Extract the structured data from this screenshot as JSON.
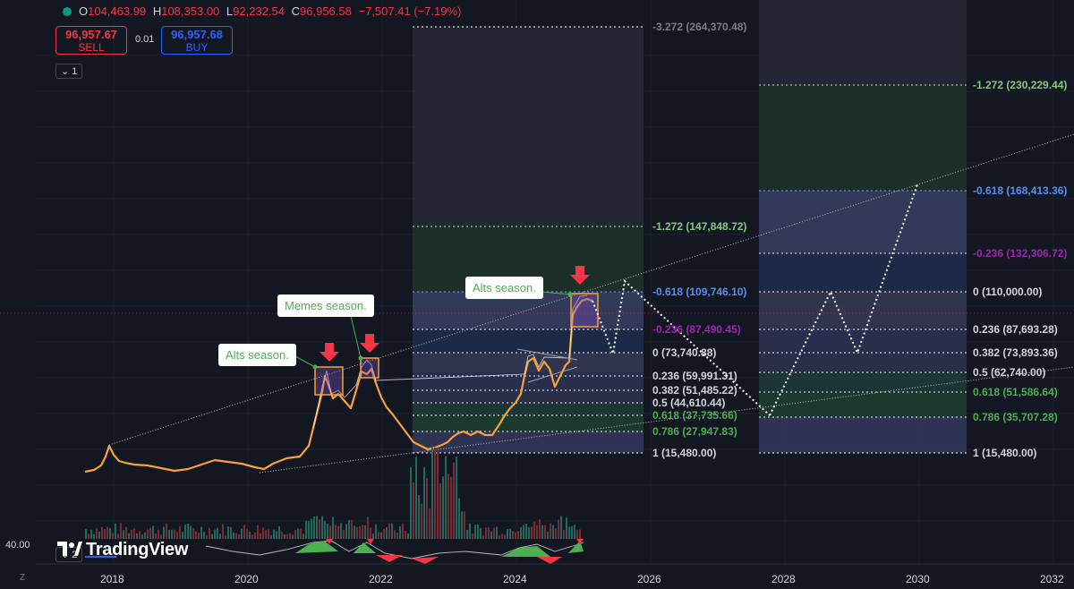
{
  "ohlc": {
    "open_key": "O",
    "open": "104,463.99",
    "high_key": "H",
    "high": "108,353.00",
    "low_key": "L",
    "low": "92,232.54",
    "close_key": "C",
    "close": "96,956.58",
    "change": "−7,507.41 (−7.19%)",
    "status_color": "#089981"
  },
  "trade": {
    "sell_price": "96,957.67",
    "sell_label": "SELL",
    "spread": "0.01",
    "buy_price": "96,957.68",
    "buy_label": "BUY"
  },
  "panes": {
    "main_count": "1",
    "sub_count": "2"
  },
  "scale_value": "40.00",
  "logo_text": "TradingView",
  "z_label": "Z",
  "x_axis": [
    "2018",
    "2020",
    "2022",
    "2024",
    "2026",
    "2028",
    "2030",
    "2032"
  ],
  "callouts": {
    "alts_2021": "Alts season.",
    "memes_2021": "Memes season.",
    "alts_2024": "Alts season."
  },
  "fib_top": [
    {
      "label": "-3.272 (264,370.48)",
      "color": "#787b86"
    },
    {
      "label": "-1.272 (147,848.72)",
      "color": "#81c784"
    },
    {
      "label": "-0.618 (109,746.10)",
      "color": "#5b8def"
    },
    {
      "label": "-0.236 (87,490.45)",
      "color": "#9c27b0"
    },
    {
      "label": "0 (73,740.88)",
      "color": "#d1d4dc"
    },
    {
      "label": "0.236 (59,991.31)",
      "color": "#d1d4dc"
    },
    {
      "label": "0.382 (51,485.22)",
      "color": "#d1d4dc"
    },
    {
      "label": "0.5 (44,610.44)",
      "color": "#d1d4dc"
    },
    {
      "label": "0.618 (37,735.66)",
      "color": "#4caf50"
    },
    {
      "label": "0.786 (27,947.83)",
      "color": "#4caf50"
    },
    {
      "label": "1 (15,480.00)",
      "color": "#d1d4dc"
    }
  ],
  "fib_right": [
    {
      "label": "-1.272 (230,229.44)",
      "color": "#81c784"
    },
    {
      "label": "-0.618 (168,413.36)",
      "color": "#5b8def"
    },
    {
      "label": "-0.236 (132,306.72)",
      "color": "#9c27b0"
    },
    {
      "label": "0 (110,000.00)",
      "color": "#d1d4dc"
    },
    {
      "label": "0.236 (87,693.28)",
      "color": "#d1d4dc"
    },
    {
      "label": "0.382 (73,893.36)",
      "color": "#d1d4dc"
    },
    {
      "label": "0.5 (62,740.00)",
      "color": "#d1d4dc"
    },
    {
      "label": "0.618 (51,586.64)",
      "color": "#4caf50"
    },
    {
      "label": "0.786 (35,707.28)",
      "color": "#4caf50"
    },
    {
      "label": "1 (15,480.00)",
      "color": "#d1d4dc"
    }
  ],
  "colors": {
    "background": "#131722",
    "up": "#089981",
    "down": "#f23645",
    "candle_up": "#ffffff",
    "candle_down": "#f7a13a",
    "arrow": "#f23645"
  }
}
